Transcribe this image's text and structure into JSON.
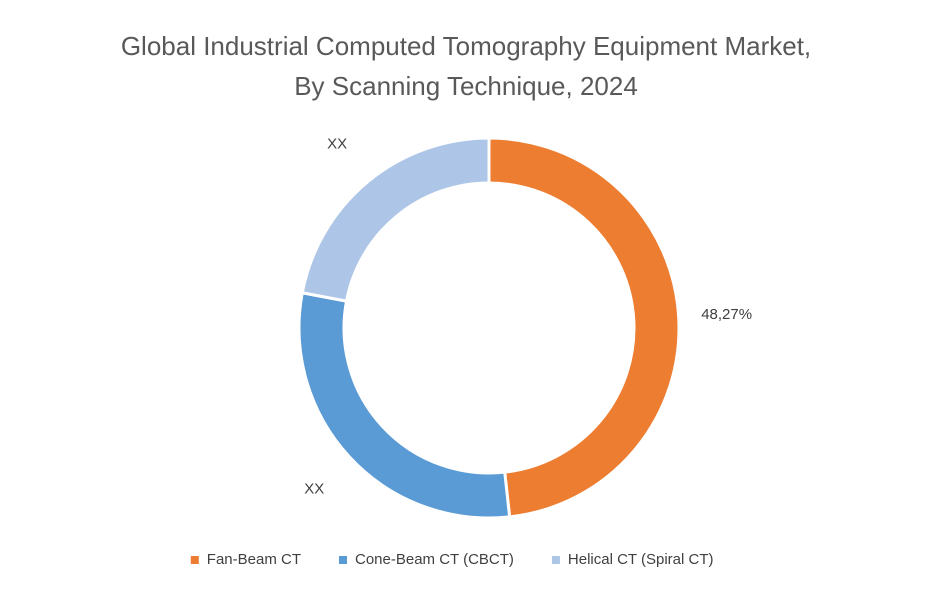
{
  "chart_data": {
    "type": "donut",
    "title": [
      "Global Industrial Computed Tomography Equipment Market,",
      "By Scanning Technique, 2024"
    ],
    "categories": [
      "Fan-Beam CT",
      "Cone-Beam CT (CBCT)",
      "Helical CT (Spiral CT)"
    ],
    "values": [
      48.27,
      29.7,
      22.03
    ],
    "value_labels": [
      "48,27%",
      "XX",
      "XX"
    ],
    "colors": [
      "#ed7d31",
      "#5b9bd5",
      "#adc6e8"
    ],
    "legend": "bottom"
  }
}
